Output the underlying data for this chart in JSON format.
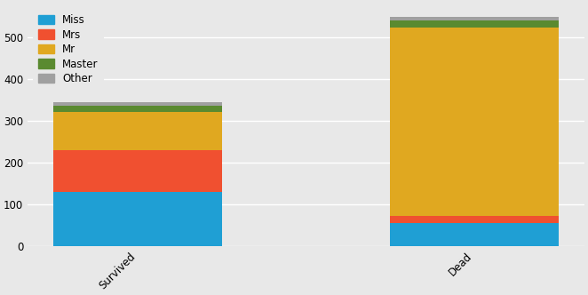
{
  "categories": [
    "Survived",
    "Dead"
  ],
  "series": [
    {
      "label": "Miss",
      "color": "#1f9fd4",
      "values": [
        130,
        55
      ]
    },
    {
      "label": "Mrs",
      "color": "#f05030",
      "values": [
        100,
        17
      ]
    },
    {
      "label": "Mr",
      "color": "#e0a820",
      "values": [
        90,
        450
      ]
    },
    {
      "label": "Master",
      "color": "#5a8a30",
      "values": [
        15,
        17
      ]
    },
    {
      "label": "Other",
      "color": "#a0a0a0",
      "values": [
        10,
        10
      ]
    }
  ],
  "background_color": "#e8e8e8",
  "ylim": [
    0,
    580
  ],
  "yticks": [
    0,
    100,
    200,
    300,
    400,
    500
  ],
  "bar_width": 0.5,
  "figsize": [
    6.62,
    3.32
  ],
  "dpi": 100,
  "legend_fontsize": 8.5,
  "tick_fontsize": 8.5,
  "xtick_fontsize": 8.5
}
